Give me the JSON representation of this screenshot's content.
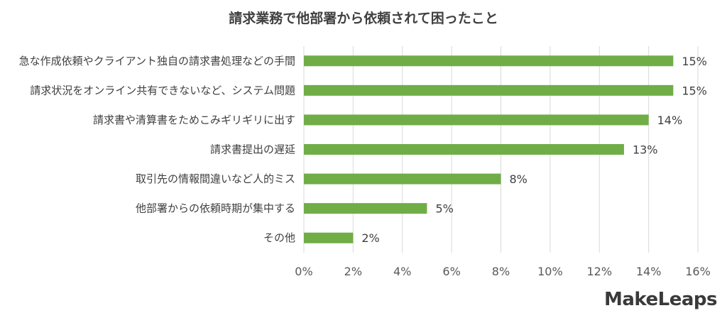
{
  "chart_data": {
    "type": "bar",
    "orientation": "horizontal",
    "title": "請求業務で他部署から依頼されて困ったこと",
    "categories": [
      "急な作成依頼やクライアント独自の請求書処理などの手間",
      "請求状況をオンライン共有できないなど、システム問題",
      "請求書や清算書をためこみギリギリに出す",
      "請求書提出の遅延",
      "取引先の情報間違いなど人的ミス",
      "他部署からの依頼時期が集中する",
      "その他"
    ],
    "values": [
      15,
      15,
      14,
      13,
      8,
      5,
      2
    ],
    "value_labels": [
      "15%",
      "15%",
      "14%",
      "13%",
      "8%",
      "5%",
      "2%"
    ],
    "xlim": [
      0,
      16
    ],
    "xticks": [
      0,
      2,
      4,
      6,
      8,
      10,
      12,
      14,
      16
    ],
    "xtick_labels": [
      "0%",
      "2%",
      "4%",
      "6%",
      "8%",
      "10%",
      "12%",
      "14%",
      "16%"
    ],
    "grid": "vertical",
    "legend": "none",
    "bar_color": "#70ad47"
  },
  "logo": {
    "text": "MakeLeaps"
  }
}
